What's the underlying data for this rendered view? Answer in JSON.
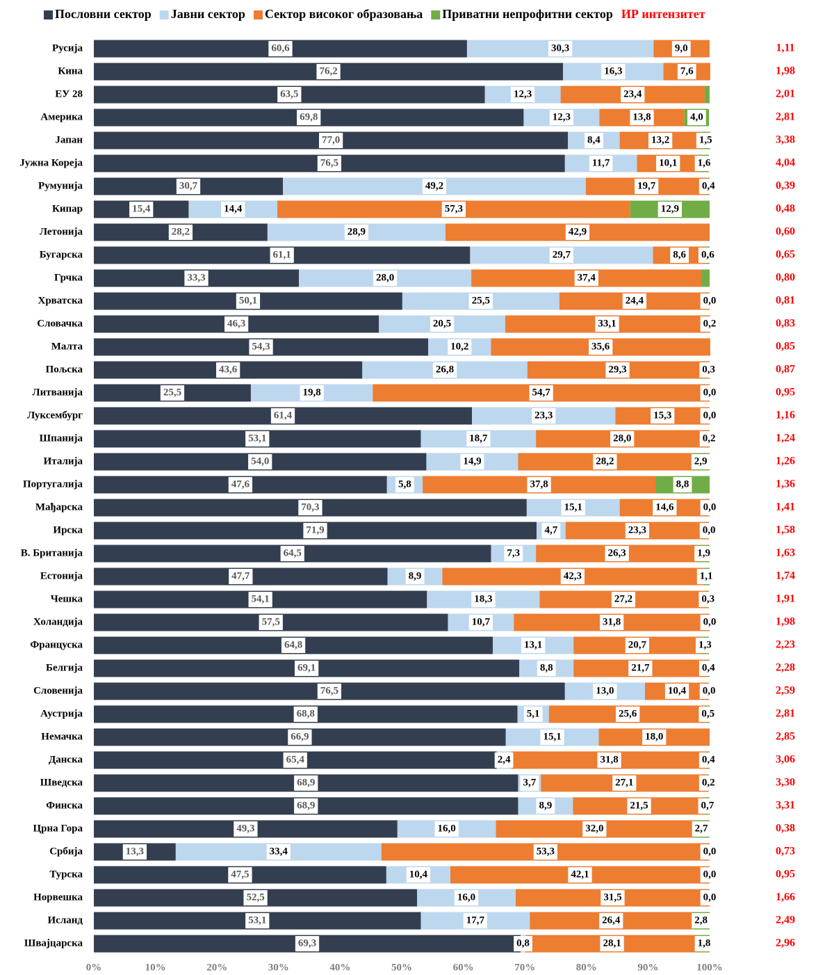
{
  "chart_data": {
    "type": "stacked-bar-horizontal",
    "categories": [
      "Русија",
      "Кина",
      "ЕУ 28",
      "Америка",
      "Јапан",
      "Јужна Кореја",
      "Румунија",
      "Кипар",
      "Летонија",
      "Бугарска",
      "Грчка",
      "Хрватска",
      "Словачка",
      "Малта",
      "Пољска",
      "Литванија",
      "Луксембург",
      "Шпанија",
      "Италија",
      "Португалија",
      "Мађарска",
      "Ирска",
      "В. Британија",
      "Естонија",
      "Чешка",
      "Холандија",
      "Француска",
      "Белгија",
      "Словенија",
      "Аустрија",
      "Немачка",
      "Данска",
      "Шведска",
      "Финска",
      "Црна Гора",
      "Србија",
      "Турска",
      "Норвешка",
      "Исланд",
      "Швајцарска"
    ],
    "series": [
      {
        "name": "Пословни сектор",
        "color": "#333f50",
        "values": [
          60.6,
          76.2,
          63.5,
          69.8,
          77.0,
          76.5,
          30.7,
          15.4,
          28.2,
          61.1,
          33.3,
          50.1,
          46.3,
          54.3,
          43.6,
          25.5,
          61.4,
          53.1,
          54.0,
          47.6,
          70.3,
          71.9,
          64.5,
          47.7,
          54.1,
          57.5,
          64.8,
          69.1,
          76.5,
          68.8,
          66.9,
          65.4,
          68.9,
          68.9,
          49.3,
          13.3,
          47.5,
          52.5,
          53.1,
          69.3
        ],
        "value_labels": [
          "60,6",
          "76,2",
          "63,5",
          "69,8",
          "77,0",
          "76,5",
          "30,7",
          "15,4",
          "28,2",
          "61,1",
          "33,3",
          "50,1",
          "46,3",
          "54,3",
          "43,6",
          "25,5",
          "61,4",
          "53,1",
          "54,0",
          "47,6",
          "70,3",
          "71,9",
          "64,5",
          "47,7",
          "54,1",
          "57,5",
          "64,8",
          "69,1",
          "76,5",
          "68,8",
          "66,9",
          "65,4",
          "68,9",
          "68,9",
          "49,3",
          "13,3",
          "47,5",
          "52,5",
          "53,1",
          "69,3"
        ]
      },
      {
        "name": "Јавни сектор",
        "color": "#bdd7ee",
        "values": [
          30.3,
          16.3,
          12.3,
          12.3,
          8.4,
          11.7,
          49.2,
          14.4,
          28.9,
          29.7,
          28.0,
          25.5,
          20.5,
          10.2,
          26.8,
          19.8,
          23.3,
          18.7,
          14.9,
          5.8,
          15.1,
          4.7,
          7.3,
          8.9,
          18.3,
          10.7,
          13.1,
          8.8,
          13.0,
          5.1,
          15.1,
          2.4,
          3.7,
          8.9,
          16.0,
          33.4,
          10.4,
          16.0,
          17.7,
          0.8
        ],
        "value_labels": [
          "30,3",
          "16,3",
          "12,3",
          "12,3",
          "8,4",
          "11,7",
          "49,2",
          "14,4",
          "28,9",
          "29,7",
          "28,0",
          "25,5",
          "20,5",
          "10,2",
          "26,8",
          "19,8",
          "23,3",
          "18,7",
          "14,9",
          "5,8",
          "15,1",
          "4,7",
          "7,3",
          "8,9",
          "18,3",
          "10,7",
          "13,1",
          "8,8",
          "13,0",
          "5,1",
          "15,1",
          "2,4",
          "3,7",
          "8,9",
          "16,0",
          "33,4",
          "10,4",
          "16,0",
          "17,7",
          "0,8"
        ]
      },
      {
        "name": "Сектор високог образовања",
        "color": "#ed7d31",
        "values": [
          9.0,
          7.6,
          23.4,
          13.8,
          13.2,
          10.1,
          19.7,
          57.3,
          42.9,
          8.6,
          37.4,
          24.4,
          33.1,
          35.6,
          29.3,
          54.7,
          15.3,
          28.0,
          28.2,
          37.8,
          14.6,
          23.3,
          26.3,
          42.3,
          27.2,
          31.8,
          20.7,
          21.7,
          10.4,
          25.6,
          18.0,
          31.8,
          27.1,
          21.5,
          32.0,
          53.3,
          42.1,
          31.5,
          26.4,
          28.1
        ],
        "value_labels": [
          "9,0",
          "7,6",
          "23,4",
          "13,8",
          "13,2",
          "10,1",
          "19,7",
          "57,3",
          "42,9",
          "8,6",
          "37,4",
          "24,4",
          "33,1",
          "35,6",
          "29,3",
          "54,7",
          "15,3",
          "28,0",
          "28,2",
          "37,8",
          "14,6",
          "23,3",
          "26,3",
          "42,3",
          "27,2",
          "31,8",
          "20,7",
          "21,7",
          "10,4",
          "25,6",
          "18,0",
          "31,8",
          "27,1",
          "21,5",
          "32,0",
          "53,3",
          "42,1",
          "31,5",
          "26,4",
          "28,1"
        ]
      },
      {
        "name": "Приватни непрофитни сектор",
        "color": "#70ad47",
        "values": [
          0.1,
          0,
          0.8,
          4.0,
          1.5,
          1.6,
          0.4,
          12.9,
          0,
          0.6,
          1.3,
          0.0,
          0.2,
          0,
          0.3,
          0.0,
          0.0,
          0.2,
          2.9,
          8.8,
          0.0,
          0.0,
          1.9,
          1.1,
          0.3,
          0.0,
          1.3,
          0.4,
          0.0,
          0.5,
          0,
          0.4,
          0.2,
          0.7,
          2.7,
          0.0,
          0.0,
          0.0,
          2.8,
          1.8
        ],
        "value_labels": [
          null,
          null,
          null,
          "4,0",
          "1,5",
          "1,6",
          "0,4",
          "12,9",
          null,
          "0,6",
          null,
          "0,0",
          "0,2",
          null,
          "0,3",
          "0,0",
          "0,0",
          "0,2",
          "2,9",
          "8,8",
          "0,0",
          "0,0",
          "1,9",
          "1,1",
          "0,3",
          "0,0",
          "1,3",
          "0,4",
          "0,0",
          "0,5",
          null,
          "0,4",
          "0,2",
          "0,7",
          "2,7",
          "0,0",
          "0,0",
          "0,0",
          "2,8",
          "1,8"
        ]
      }
    ],
    "intensity": {
      "name": "ИР интензитет",
      "color": "#ff0000",
      "values": [
        1.11,
        1.98,
        2.01,
        2.81,
        3.38,
        4.04,
        0.39,
        0.48,
        0.6,
        0.65,
        0.8,
        0.81,
        0.83,
        0.85,
        0.87,
        0.95,
        1.16,
        1.24,
        1.26,
        1.36,
        1.41,
        1.58,
        1.63,
        1.74,
        1.91,
        1.98,
        2.23,
        2.28,
        2.59,
        2.81,
        2.85,
        3.06,
        3.3,
        3.31,
        0.38,
        0.73,
        0.95,
        1.66,
        2.49,
        2.96
      ],
      "value_labels": [
        "1,11",
        "1,98",
        "2,01",
        "2,81",
        "3,38",
        "4,04",
        "0,39",
        "0,48",
        "0,60",
        "0,65",
        "0,80",
        "0,81",
        "0,83",
        "0,85",
        "0,87",
        "0,95",
        "1,16",
        "1,24",
        "1,26",
        "1,36",
        "1,41",
        "1,58",
        "1,63",
        "1,74",
        "1,91",
        "1,98",
        "2,23",
        "2,28",
        "2,59",
        "2,81",
        "2,85",
        "3,06",
        "3,30",
        "3,31",
        "0,38",
        "0,73",
        "0,95",
        "1,66",
        "2,49",
        "2,96"
      ]
    },
    "xlim": [
      0,
      100
    ],
    "xticks": [
      {
        "value": 0,
        "label": "0%"
      },
      {
        "value": 10,
        "label": "10%"
      },
      {
        "value": 20,
        "label": "20%"
      },
      {
        "value": 30,
        "label": "30%"
      },
      {
        "value": 40,
        "label": "40%"
      },
      {
        "value": 50,
        "label": "50%"
      },
      {
        "value": 60,
        "label": "60%"
      },
      {
        "value": 70,
        "label": "70%"
      },
      {
        "value": 80,
        "label": "80%"
      },
      {
        "value": 90,
        "label": "90%"
      },
      {
        "value": 100,
        "label": "100%"
      }
    ],
    "legend": "top",
    "grid": false
  }
}
